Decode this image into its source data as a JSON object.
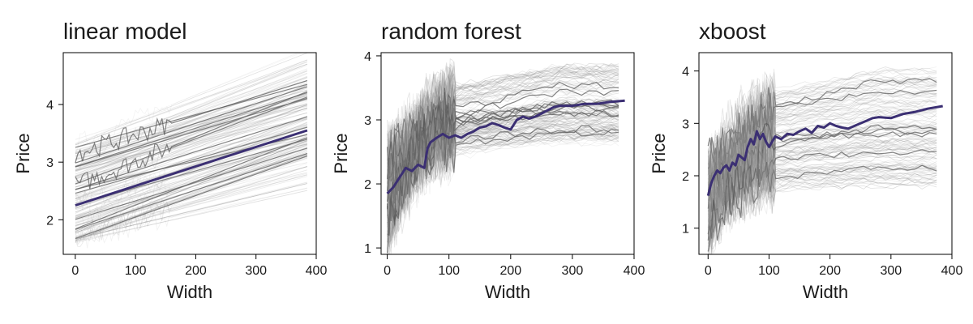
{
  "chart_data": [
    {
      "type": "line",
      "title": "linear model",
      "xlabel": "Width",
      "ylabel": "Price",
      "xlim": [
        -20,
        400
      ],
      "ylim": [
        1.4,
        4.9
      ],
      "xticks": [
        0,
        100,
        200,
        300,
        400
      ],
      "yticks": [
        2,
        3,
        4
      ],
      "x_tick_labels": [
        "0",
        "100",
        "200",
        "300",
        "400"
      ],
      "y_tick_labels": [
        "2",
        "3",
        "4"
      ],
      "mean_color": "#3b2f73",
      "ice_color": "#8c8c8c",
      "mean_curve": {
        "x": [
          0,
          385
        ],
        "y": [
          2.25,
          3.55
        ]
      },
      "ice": {
        "count": 180,
        "x_range": [
          0,
          385
        ],
        "start_range": [
          1.6,
          3.4
        ],
        "slope_range": [
          0.0022,
          0.0044
        ]
      }
    },
    {
      "type": "line",
      "title": "random forest",
      "xlabel": "Width",
      "ylabel": "Price",
      "xlim": [
        -10,
        400
      ],
      "ylim": [
        0.9,
        4.05
      ],
      "xticks": [
        0,
        100,
        200,
        300,
        400
      ],
      "yticks": [
        1,
        2,
        3,
        4
      ],
      "x_tick_labels": [
        "0",
        "100",
        "200",
        "300",
        "400"
      ],
      "y_tick_labels": [
        "1",
        "2",
        "3",
        "4"
      ],
      "mean_color": "#3b2f73",
      "ice_color": "#8c8c8c",
      "mean_curve": {
        "x": [
          0,
          10,
          20,
          30,
          40,
          50,
          60,
          65,
          70,
          80,
          90,
          100,
          110,
          120,
          130,
          140,
          150,
          160,
          170,
          180,
          190,
          200,
          210,
          220,
          230,
          240,
          250,
          260,
          270,
          280,
          300,
          320,
          340,
          360,
          385
        ],
        "y": [
          1.85,
          1.95,
          2.1,
          2.25,
          2.2,
          2.3,
          2.25,
          2.55,
          2.65,
          2.72,
          2.78,
          2.72,
          2.76,
          2.72,
          2.78,
          2.82,
          2.88,
          2.9,
          2.95,
          2.92,
          2.88,
          2.85,
          3.0,
          3.05,
          3.02,
          3.05,
          3.1,
          3.15,
          3.2,
          3.22,
          3.22,
          3.25,
          3.25,
          3.28,
          3.3
        ]
      },
      "ice": {
        "count": 150,
        "x_range": [
          0,
          385
        ],
        "start_range": [
          1.1,
          2.6
        ],
        "plateau_range": [
          2.6,
          3.85
        ]
      }
    },
    {
      "type": "line",
      "title": "xboost",
      "xlabel": "Width",
      "ylabel": "Price",
      "xlim": [
        -15,
        400
      ],
      "ylim": [
        0.5,
        4.35
      ],
      "xticks": [
        0,
        100,
        200,
        300,
        400
      ],
      "yticks": [
        1,
        2,
        3,
        4
      ],
      "x_tick_labels": [
        "0",
        "100",
        "200",
        "300",
        "400"
      ],
      "y_tick_labels": [
        "1",
        "2",
        "3",
        "4"
      ],
      "mean_color": "#3b2f73",
      "ice_color": "#8c8c8c",
      "mean_curve": {
        "x": [
          0,
          5,
          10,
          15,
          20,
          25,
          30,
          35,
          40,
          45,
          50,
          55,
          60,
          65,
          70,
          75,
          80,
          85,
          90,
          95,
          100,
          110,
          120,
          130,
          140,
          150,
          160,
          170,
          180,
          190,
          200,
          210,
          220,
          230,
          240,
          250,
          260,
          270,
          280,
          300,
          320,
          340,
          360,
          385
        ],
        "y": [
          1.62,
          1.85,
          2.0,
          2.1,
          2.05,
          2.15,
          2.2,
          2.1,
          2.25,
          2.2,
          2.4,
          2.35,
          2.3,
          2.55,
          2.7,
          2.6,
          2.85,
          2.7,
          2.8,
          2.65,
          2.55,
          2.75,
          2.7,
          2.8,
          2.78,
          2.85,
          2.9,
          2.82,
          2.95,
          2.92,
          3.0,
          2.95,
          2.92,
          2.9,
          2.95,
          3.0,
          3.05,
          3.1,
          3.12,
          3.1,
          3.18,
          3.22,
          3.28,
          3.33
        ]
      },
      "ice": {
        "count": 150,
        "x_range": [
          0,
          385
        ],
        "start_range": [
          0.7,
          2.4
        ],
        "plateau_range": [
          1.8,
          4.05
        ]
      }
    }
  ]
}
